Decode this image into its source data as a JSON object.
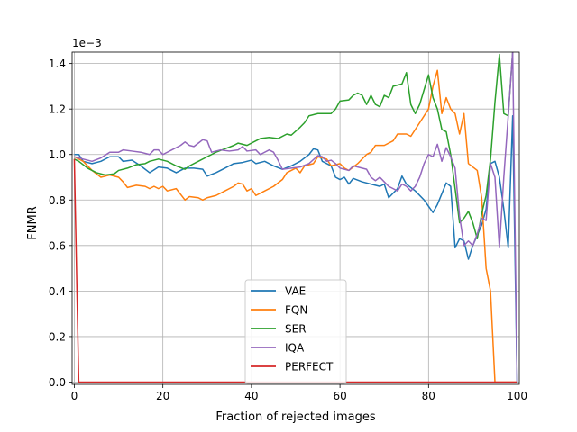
{
  "chart_data": {
    "type": "line",
    "title": "",
    "xlabel": "Fraction of rejected images",
    "ylabel": "FNMR",
    "y_multiplier_label": "1e−3",
    "xlim": [
      -0.5,
      100.5
    ],
    "ylim": [
      -0.01,
      1.45
    ],
    "x_ticks": [
      0,
      20,
      40,
      60,
      80,
      100
    ],
    "x_tick_labels": [
      "0",
      "20",
      "40",
      "60",
      "80",
      "100"
    ],
    "y_ticks": [
      0.0,
      0.2,
      0.4,
      0.6,
      0.8,
      1.0,
      1.2,
      1.4
    ],
    "y_tick_labels": [
      "0.0",
      "0.2",
      "0.4",
      "0.6",
      "0.8",
      "1.0",
      "1.2",
      "1.4"
    ],
    "grid": true,
    "legend_position": "bottom-center",
    "series": [
      {
        "name": "VAE",
        "color": "#1f77b4",
        "points": [
          [
            0,
            1.0
          ],
          [
            1,
            1.0
          ],
          [
            2,
            0.97
          ],
          [
            4,
            0.96
          ],
          [
            6,
            0.97
          ],
          [
            8,
            0.99
          ],
          [
            10,
            0.99
          ],
          [
            11,
            0.97
          ],
          [
            13,
            0.975
          ],
          [
            15,
            0.95
          ],
          [
            17,
            0.92
          ],
          [
            19,
            0.945
          ],
          [
            21,
            0.94
          ],
          [
            23,
            0.92
          ],
          [
            25,
            0.94
          ],
          [
            27,
            0.94
          ],
          [
            29,
            0.935
          ],
          [
            30,
            0.905
          ],
          [
            32,
            0.92
          ],
          [
            34,
            0.94
          ],
          [
            36,
            0.96
          ],
          [
            38,
            0.965
          ],
          [
            40,
            0.975
          ],
          [
            41,
            0.96
          ],
          [
            43,
            0.97
          ],
          [
            45,
            0.95
          ],
          [
            47,
            0.935
          ],
          [
            49,
            0.95
          ],
          [
            51,
            0.97
          ],
          [
            53,
            1.0
          ],
          [
            54,
            1.025
          ],
          [
            55,
            1.02
          ],
          [
            56,
            0.97
          ],
          [
            58,
            0.95
          ],
          [
            59,
            0.9
          ],
          [
            60,
            0.89
          ],
          [
            61,
            0.9
          ],
          [
            62,
            0.87
          ],
          [
            63,
            0.895
          ],
          [
            65,
            0.88
          ],
          [
            67,
            0.87
          ],
          [
            69,
            0.86
          ],
          [
            70,
            0.87
          ],
          [
            71,
            0.81
          ],
          [
            73,
            0.85
          ],
          [
            74,
            0.905
          ],
          [
            75,
            0.87
          ],
          [
            77,
            0.84
          ],
          [
            79,
            0.8
          ],
          [
            81,
            0.745
          ],
          [
            82,
            0.78
          ],
          [
            84,
            0.875
          ],
          [
            85,
            0.86
          ],
          [
            86,
            0.59
          ],
          [
            87,
            0.63
          ],
          [
            88,
            0.62
          ],
          [
            89,
            0.54
          ],
          [
            90,
            0.6
          ],
          [
            92,
            0.69
          ],
          [
            93,
            0.76
          ],
          [
            94,
            0.96
          ],
          [
            95,
            0.97
          ],
          [
            96,
            0.9
          ],
          [
            97,
            0.76
          ],
          [
            98,
            0.59
          ],
          [
            99,
            1.17
          ],
          [
            100,
            0.0
          ]
        ]
      },
      {
        "name": "FQN",
        "color": "#ff7f0e",
        "points": [
          [
            0,
            0.99
          ],
          [
            2,
            0.97
          ],
          [
            4,
            0.93
          ],
          [
            6,
            0.9
          ],
          [
            8,
            0.91
          ],
          [
            10,
            0.9
          ],
          [
            11,
            0.88
          ],
          [
            12,
            0.855
          ],
          [
            14,
            0.865
          ],
          [
            16,
            0.86
          ],
          [
            17,
            0.85
          ],
          [
            18,
            0.86
          ],
          [
            19,
            0.85
          ],
          [
            20,
            0.86
          ],
          [
            21,
            0.84
          ],
          [
            23,
            0.85
          ],
          [
            25,
            0.8
          ],
          [
            26,
            0.815
          ],
          [
            28,
            0.81
          ],
          [
            29,
            0.8
          ],
          [
            30,
            0.81
          ],
          [
            32,
            0.82
          ],
          [
            34,
            0.84
          ],
          [
            36,
            0.86
          ],
          [
            37,
            0.875
          ],
          [
            38,
            0.87
          ],
          [
            39,
            0.84
          ],
          [
            40,
            0.85
          ],
          [
            41,
            0.82
          ],
          [
            43,
            0.84
          ],
          [
            45,
            0.86
          ],
          [
            47,
            0.89
          ],
          [
            48,
            0.92
          ],
          [
            49,
            0.93
          ],
          [
            50,
            0.94
          ],
          [
            51,
            0.92
          ],
          [
            52,
            0.95
          ],
          [
            54,
            0.96
          ],
          [
            55,
            0.99
          ],
          [
            57,
            0.98
          ],
          [
            58,
            0.95
          ],
          [
            60,
            0.96
          ],
          [
            61,
            0.94
          ],
          [
            62,
            0.93
          ],
          [
            64,
            0.96
          ],
          [
            66,
            1.0
          ],
          [
            67,
            1.01
          ],
          [
            68,
            1.04
          ],
          [
            70,
            1.04
          ],
          [
            72,
            1.06
          ],
          [
            73,
            1.09
          ],
          [
            75,
            1.09
          ],
          [
            76,
            1.08
          ],
          [
            78,
            1.14
          ],
          [
            80,
            1.2
          ],
          [
            81,
            1.3
          ],
          [
            82,
            1.37
          ],
          [
            83,
            1.18
          ],
          [
            84,
            1.25
          ],
          [
            85,
            1.2
          ],
          [
            86,
            1.18
          ],
          [
            87,
            1.09
          ],
          [
            88,
            1.18
          ],
          [
            89,
            0.96
          ],
          [
            91,
            0.93
          ],
          [
            92,
            0.81
          ],
          [
            93,
            0.5
          ],
          [
            94,
            0.4
          ],
          [
            95,
            0.0
          ],
          [
            100,
            0.0
          ]
        ]
      },
      {
        "name": "SER",
        "color": "#2ca02c",
        "points": [
          [
            0,
            0.98
          ],
          [
            1,
            0.97
          ],
          [
            3,
            0.94
          ],
          [
            5,
            0.92
          ],
          [
            7,
            0.91
          ],
          [
            9,
            0.915
          ],
          [
            10,
            0.93
          ],
          [
            12,
            0.94
          ],
          [
            14,
            0.955
          ],
          [
            16,
            0.96
          ],
          [
            17,
            0.97
          ],
          [
            19,
            0.98
          ],
          [
            21,
            0.97
          ],
          [
            23,
            0.95
          ],
          [
            25,
            0.935
          ],
          [
            26,
            0.95
          ],
          [
            28,
            0.97
          ],
          [
            30,
            0.99
          ],
          [
            32,
            1.01
          ],
          [
            34,
            1.025
          ],
          [
            36,
            1.04
          ],
          [
            37,
            1.05
          ],
          [
            39,
            1.04
          ],
          [
            41,
            1.06
          ],
          [
            42,
            1.07
          ],
          [
            44,
            1.075
          ],
          [
            46,
            1.07
          ],
          [
            48,
            1.09
          ],
          [
            49,
            1.085
          ],
          [
            51,
            1.12
          ],
          [
            52,
            1.14
          ],
          [
            53,
            1.17
          ],
          [
            55,
            1.18
          ],
          [
            58,
            1.18
          ],
          [
            59,
            1.2
          ],
          [
            60,
            1.235
          ],
          [
            62,
            1.24
          ],
          [
            63,
            1.26
          ],
          [
            64,
            1.27
          ],
          [
            65,
            1.26
          ],
          [
            66,
            1.22
          ],
          [
            67,
            1.26
          ],
          [
            68,
            1.22
          ],
          [
            69,
            1.21
          ],
          [
            70,
            1.26
          ],
          [
            71,
            1.25
          ],
          [
            72,
            1.3
          ],
          [
            74,
            1.31
          ],
          [
            75,
            1.36
          ],
          [
            76,
            1.22
          ],
          [
            77,
            1.18
          ],
          [
            78,
            1.22
          ],
          [
            80,
            1.35
          ],
          [
            81,
            1.25
          ],
          [
            82,
            1.2
          ],
          [
            83,
            1.11
          ],
          [
            84,
            1.1
          ],
          [
            85,
            1.0
          ],
          [
            86,
            0.85
          ],
          [
            87,
            0.7
          ],
          [
            88,
            0.72
          ],
          [
            89,
            0.75
          ],
          [
            90,
            0.7
          ],
          [
            91,
            0.63
          ],
          [
            92,
            0.74
          ],
          [
            93,
            0.82
          ],
          [
            94,
            0.98
          ],
          [
            95,
            1.23
          ],
          [
            96,
            1.44
          ],
          [
            97,
            1.18
          ],
          [
            98,
            1.17
          ],
          [
            99,
            1.45
          ]
        ]
      },
      {
        "name": "IQA",
        "color": "#9467bd",
        "points": [
          [
            0,
            0.99
          ],
          [
            2,
            0.98
          ],
          [
            4,
            0.97
          ],
          [
            6,
            0.985
          ],
          [
            8,
            1.01
          ],
          [
            10,
            1.01
          ],
          [
            11,
            1.02
          ],
          [
            13,
            1.015
          ],
          [
            15,
            1.01
          ],
          [
            17,
            1.0
          ],
          [
            18,
            1.02
          ],
          [
            19,
            1.02
          ],
          [
            20,
            1.0
          ],
          [
            22,
            1.02
          ],
          [
            24,
            1.04
          ],
          [
            25,
            1.055
          ],
          [
            26,
            1.04
          ],
          [
            27,
            1.035
          ],
          [
            28,
            1.05
          ],
          [
            29,
            1.065
          ],
          [
            30,
            1.06
          ],
          [
            31,
            1.01
          ],
          [
            33,
            1.02
          ],
          [
            35,
            1.015
          ],
          [
            37,
            1.02
          ],
          [
            38,
            1.035
          ],
          [
            39,
            1.015
          ],
          [
            41,
            1.02
          ],
          [
            42,
            1.0
          ],
          [
            44,
            1.02
          ],
          [
            45,
            1.01
          ],
          [
            46,
            0.975
          ],
          [
            47,
            0.935
          ],
          [
            49,
            0.94
          ],
          [
            51,
            0.945
          ],
          [
            53,
            0.96
          ],
          [
            55,
            0.995
          ],
          [
            56,
            0.99
          ],
          [
            57,
            0.97
          ],
          [
            58,
            0.975
          ],
          [
            59,
            0.96
          ],
          [
            60,
            0.94
          ],
          [
            62,
            0.93
          ],
          [
            63,
            0.95
          ],
          [
            64,
            0.945
          ],
          [
            66,
            0.935
          ],
          [
            67,
            0.9
          ],
          [
            68,
            0.885
          ],
          [
            69,
            0.9
          ],
          [
            70,
            0.88
          ],
          [
            71,
            0.86
          ],
          [
            72,
            0.85
          ],
          [
            73,
            0.84
          ],
          [
            74,
            0.87
          ],
          [
            75,
            0.86
          ],
          [
            76,
            0.84
          ],
          [
            77,
            0.86
          ],
          [
            78,
            0.9
          ],
          [
            79,
            0.96
          ],
          [
            80,
            1.0
          ],
          [
            81,
            0.99
          ],
          [
            82,
            1.045
          ],
          [
            83,
            0.97
          ],
          [
            84,
            1.03
          ],
          [
            85,
            0.99
          ],
          [
            86,
            0.94
          ],
          [
            87,
            0.73
          ],
          [
            88,
            0.6
          ],
          [
            89,
            0.62
          ],
          [
            90,
            0.6
          ],
          [
            91,
            0.65
          ],
          [
            92,
            0.72
          ],
          [
            93,
            0.71
          ],
          [
            94,
            0.96
          ],
          [
            95,
            0.9
          ],
          [
            96,
            0.59
          ],
          [
            97,
            0.9
          ],
          [
            98,
            1.17
          ],
          [
            99,
            1.45
          ],
          [
            100,
            0.0
          ]
        ]
      },
      {
        "name": "PERFECT",
        "color": "#d62728",
        "points": [
          [
            0,
            0.98
          ],
          [
            1,
            0.0
          ],
          [
            100,
            0.0
          ]
        ]
      }
    ]
  }
}
